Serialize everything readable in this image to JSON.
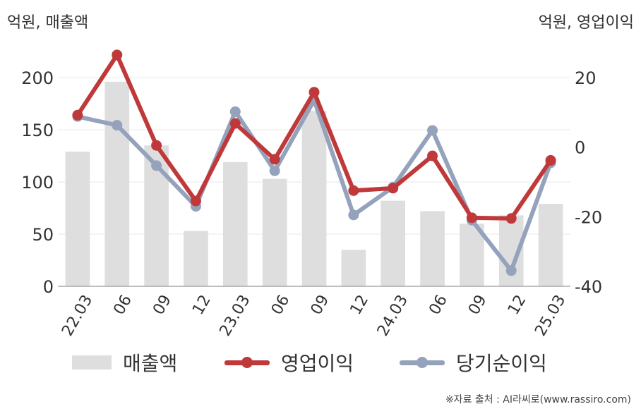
{
  "units": {
    "left": "억원, 매출액",
    "right": "억원, 영업이익"
  },
  "legend": {
    "bar": "매출액",
    "op": "영업이익",
    "net": "당기순이익"
  },
  "source": "※자료 출처 : AI라씨로(www.rassiro.com)",
  "chart_data": {
    "type": "bar+line",
    "categories": [
      "22.03",
      "06",
      "09",
      "12",
      "23.03",
      "06",
      "09",
      "12",
      "24.03",
      "06",
      "09",
      "12",
      "25.03"
    ],
    "left_axis": {
      "ylim": [
        0,
        200
      ],
      "ticks": [
        0,
        50,
        100,
        150,
        200
      ]
    },
    "right_axis": {
      "ylim": [
        -40,
        20
      ],
      "ticks": [
        -40,
        -20,
        0,
        20
      ]
    },
    "series": [
      {
        "name": "매출액",
        "kind": "bar",
        "axis": "left",
        "color": "#dedede",
        "values": [
          129,
          196,
          135,
          53,
          119,
          103,
          168,
          35,
          82,
          72,
          60,
          68,
          79
        ]
      },
      {
        "name": "영업이익",
        "kind": "line",
        "axis": "right",
        "color": "#c0393a",
        "values": [
          9.2,
          26.5,
          0.5,
          -15.5,
          6.8,
          -3.5,
          15.8,
          -12.5,
          -11.8,
          -2.5,
          -20.3,
          -20.5,
          -3.8
        ]
      },
      {
        "name": "당기순이익",
        "kind": "line",
        "axis": "right",
        "color": "#94a2bc",
        "values": [
          8.8,
          6.3,
          -5.3,
          -17.0,
          10.2,
          -6.8,
          13.5,
          -19.5,
          -11.5,
          4.8,
          -21.0,
          -35.5,
          -4.5
        ]
      }
    ],
    "grid": true
  }
}
